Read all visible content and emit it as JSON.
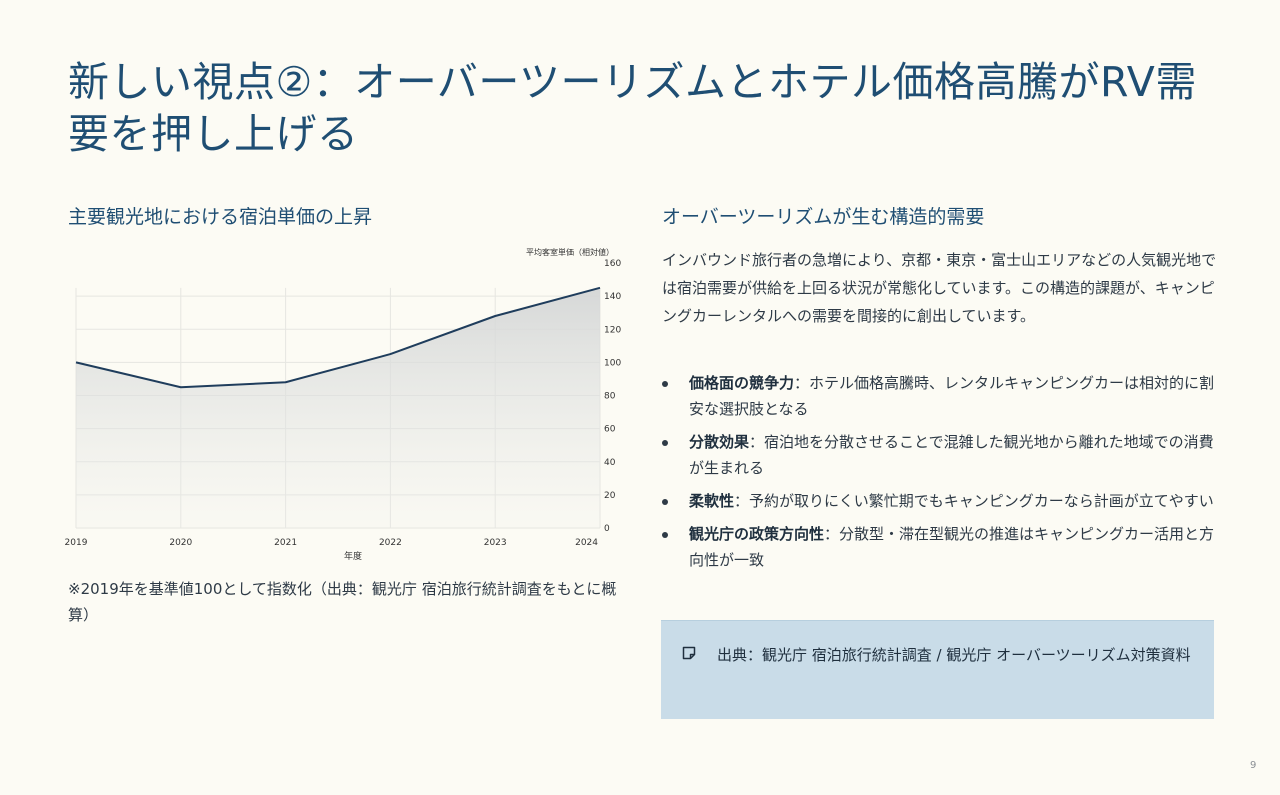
{
  "page": {
    "title": "新しい視点②：オーバーツーリズムとホテル価格高騰がRV需要を押し上げる",
    "page_number": "9"
  },
  "left": {
    "heading": "主要観光地における宿泊単価の上昇",
    "note": "※2019年を基準値100として指数化（出典：観光庁 宿泊旅行統計調査をもとに概算）"
  },
  "right": {
    "heading": "オーバーツーリズムが生む構造的需要",
    "paragraph": "インバウンド旅行者の急増により、京都・東京・富士山エリアなどの人気観光地では宿泊需要が供給を上回る状況が常態化しています。この構造的課題が、キャンピングカーレンタルへの需要を間接的に創出しています。",
    "bullets": [
      {
        "term": "価格面の競争力",
        "sep": "：",
        "text": "ホテル価格高騰時、レンタルキャンピングカーは相対的に割安な選択肢となる"
      },
      {
        "term": "分散効果",
        "sep": "：",
        "text": "宿泊地を分散させることで混雑した観光地から離れた地域での消費が生まれる"
      },
      {
        "term": "柔軟性",
        "sep": "：",
        "text": "予約が取りにくい繁忙期でもキャンピングカーなら計画が立てやすい"
      },
      {
        "term": "観光庁の政策方向性",
        "sep": "：",
        "text": "分散型・滞在型観光の推進はキャンピングカー活用と方向性が一致"
      }
    ],
    "source_icon": "note-icon",
    "source": "出典：観光庁 宿泊旅行統計調査 / 観光庁 オーバーツーリズム対策資料"
  },
  "colors": {
    "title": "#1f4e73",
    "line": "#1f3d5c",
    "source_box": "#c9dce8",
    "background": "#fcfbf4"
  },
  "chart_data": {
    "type": "area",
    "x": [
      "2019",
      "2020",
      "2021",
      "2022",
      "2023",
      "2024"
    ],
    "series": [
      {
        "values": [
          100,
          85,
          88,
          105,
          128,
          145
        ]
      }
    ],
    "xlabel": "年度",
    "ylabel": "平均客室単価（相対値）",
    "ylim": [
      0,
      160
    ],
    "yticks": [
      "0",
      "20",
      "40",
      "60",
      "80",
      "100",
      "120",
      "140",
      "160"
    ],
    "y_axis_position": "right",
    "grid": true,
    "legend": "none"
  }
}
